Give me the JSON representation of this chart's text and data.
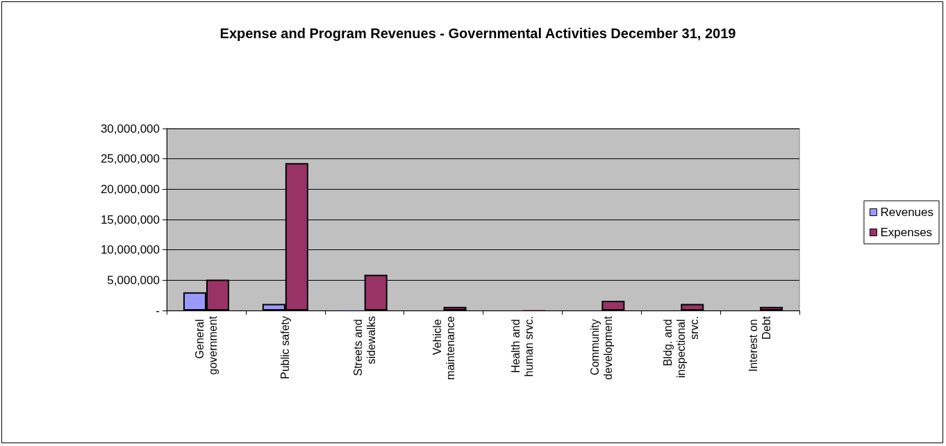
{
  "chart_data": {
    "type": "bar",
    "title": "Expense and Program Revenues - Governmental Activities December 31, 2019",
    "categories": [
      "General government",
      "Public safety",
      "Streets and sidewalks",
      "Vehicle maintenance",
      "Health and human srvc.",
      "Community development",
      "Bldg. and inspectional srvc.",
      "Interest on Debt"
    ],
    "series": [
      {
        "name": "Revenues",
        "color": "#9999ff",
        "values": [
          3000000,
          1100000,
          100000,
          null,
          null,
          null,
          null,
          null
        ]
      },
      {
        "name": "Expenses",
        "color": "#993366",
        "values": [
          5100000,
          24300000,
          5900000,
          600000,
          100000,
          1600000,
          1100000,
          600000
        ]
      }
    ],
    "ylim": [
      0,
      30000000
    ],
    "yticks": [
      {
        "value": 0,
        "label": "-"
      },
      {
        "value": 5000000,
        "label": "5,000,000"
      },
      {
        "value": 10000000,
        "label": "10,000,000"
      },
      {
        "value": 15000000,
        "label": "15,000,000"
      },
      {
        "value": 20000000,
        "label": "20,000,000"
      },
      {
        "value": 25000000,
        "label": "25,000,000"
      },
      {
        "value": 30000000,
        "label": "30,000,000"
      }
    ],
    "grid": "y",
    "legend": "right"
  }
}
